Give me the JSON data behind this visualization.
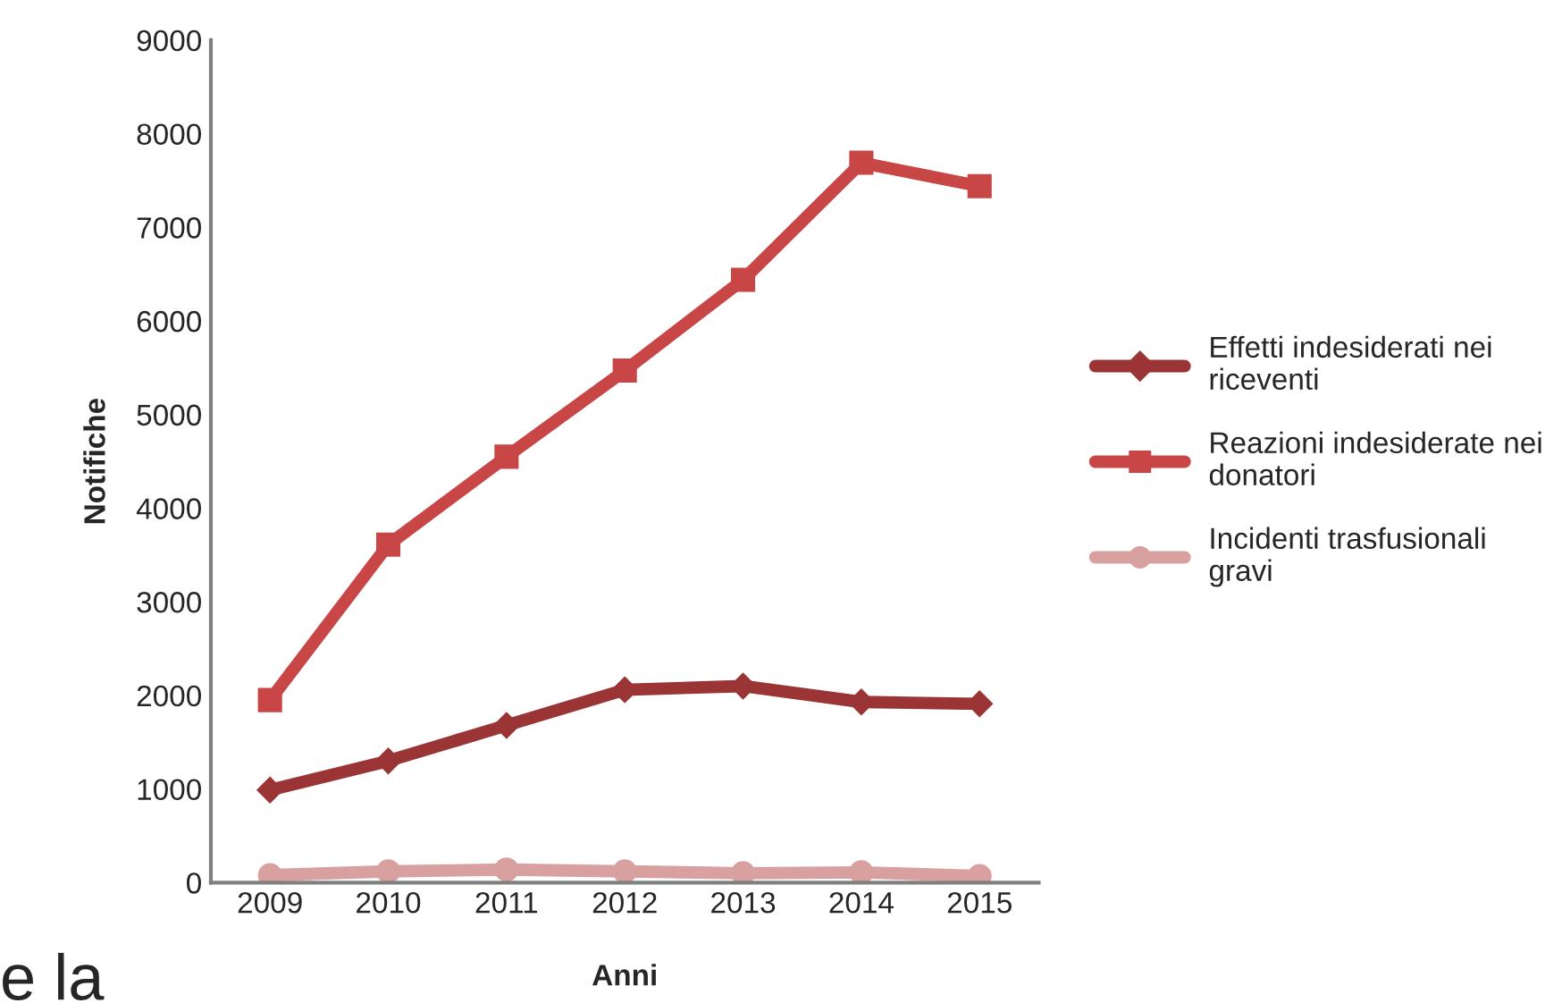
{
  "chart_data": {
    "type": "line",
    "xlabel": "Anni",
    "ylabel": "Notifiche",
    "categories": [
      "2009",
      "2010",
      "2011",
      "2012",
      "2013",
      "2014",
      "2015"
    ],
    "series": [
      {
        "name": "Effetti indesiderati nei riceventi",
        "color": "#9b3535",
        "marker": "diamond",
        "values": [
          990,
          1300,
          1680,
          2060,
          2100,
          1930,
          1910
        ]
      },
      {
        "name": "Reazioni indesiderate nei donatori",
        "color": "#c84646",
        "marker": "square",
        "values": [
          1950,
          3610,
          4550,
          5470,
          6440,
          7690,
          7440
        ]
      },
      {
        "name": "Incidenti trasfusionali gravi",
        "color": "#d9a0a0",
        "marker": "circle",
        "values": [
          80,
          120,
          140,
          120,
          100,
          110,
          70
        ]
      }
    ],
    "ylim": [
      0,
      9000
    ],
    "yticks": [
      0,
      1000,
      2000,
      3000,
      4000,
      5000,
      6000,
      7000,
      8000,
      9000
    ],
    "grid": false,
    "legend": "right",
    "line_style": "solid",
    "annotations": [
      "e la"
    ]
  }
}
